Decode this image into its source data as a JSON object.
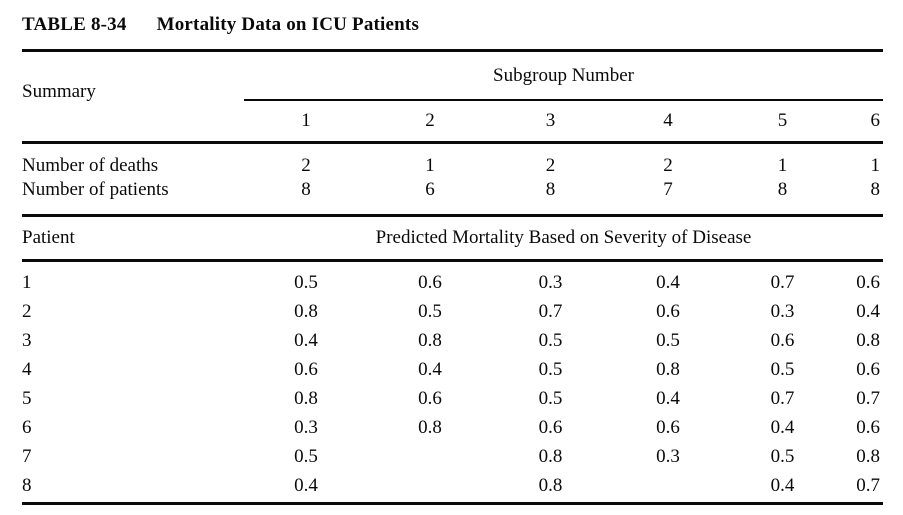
{
  "title": {
    "label": "TABLE 8-34",
    "text": "Mortality Data on ICU Patients"
  },
  "table": {
    "summary_label": "Summary",
    "subgroup_header": "Subgroup Number",
    "columns": [
      "1",
      "2",
      "3",
      "4",
      "5",
      "6"
    ],
    "summary_rows": [
      {
        "label": "Number of deaths",
        "values": [
          "2",
          "1",
          "2",
          "2",
          "1",
          "1"
        ]
      },
      {
        "label": "Number of patients",
        "values": [
          "8",
          "6",
          "8",
          "7",
          "8",
          "8"
        ]
      }
    ],
    "patient_label": "Patient",
    "predicted_header": "Predicted Mortality Based on Severity of Disease",
    "patient_rows": [
      {
        "label": "1",
        "values": [
          "0.5",
          "0.6",
          "0.3",
          "0.4",
          "0.7",
          "0.6"
        ]
      },
      {
        "label": "2",
        "values": [
          "0.8",
          "0.5",
          "0.7",
          "0.6",
          "0.3",
          "0.4"
        ]
      },
      {
        "label": "3",
        "values": [
          "0.4",
          "0.8",
          "0.5",
          "0.5",
          "0.6",
          "0.8"
        ]
      },
      {
        "label": "4",
        "values": [
          "0.6",
          "0.4",
          "0.5",
          "0.8",
          "0.5",
          "0.6"
        ]
      },
      {
        "label": "5",
        "values": [
          "0.8",
          "0.6",
          "0.5",
          "0.4",
          "0.7",
          "0.7"
        ]
      },
      {
        "label": "6",
        "values": [
          "0.3",
          "0.8",
          "0.6",
          "0.6",
          "0.4",
          "0.6"
        ]
      },
      {
        "label": "7",
        "values": [
          "0.5",
          "",
          "0.8",
          "0.3",
          "0.5",
          "0.8"
        ]
      },
      {
        "label": "8",
        "values": [
          "0.4",
          "",
          "0.8",
          "",
          "0.4",
          "0.7"
        ]
      }
    ]
  }
}
